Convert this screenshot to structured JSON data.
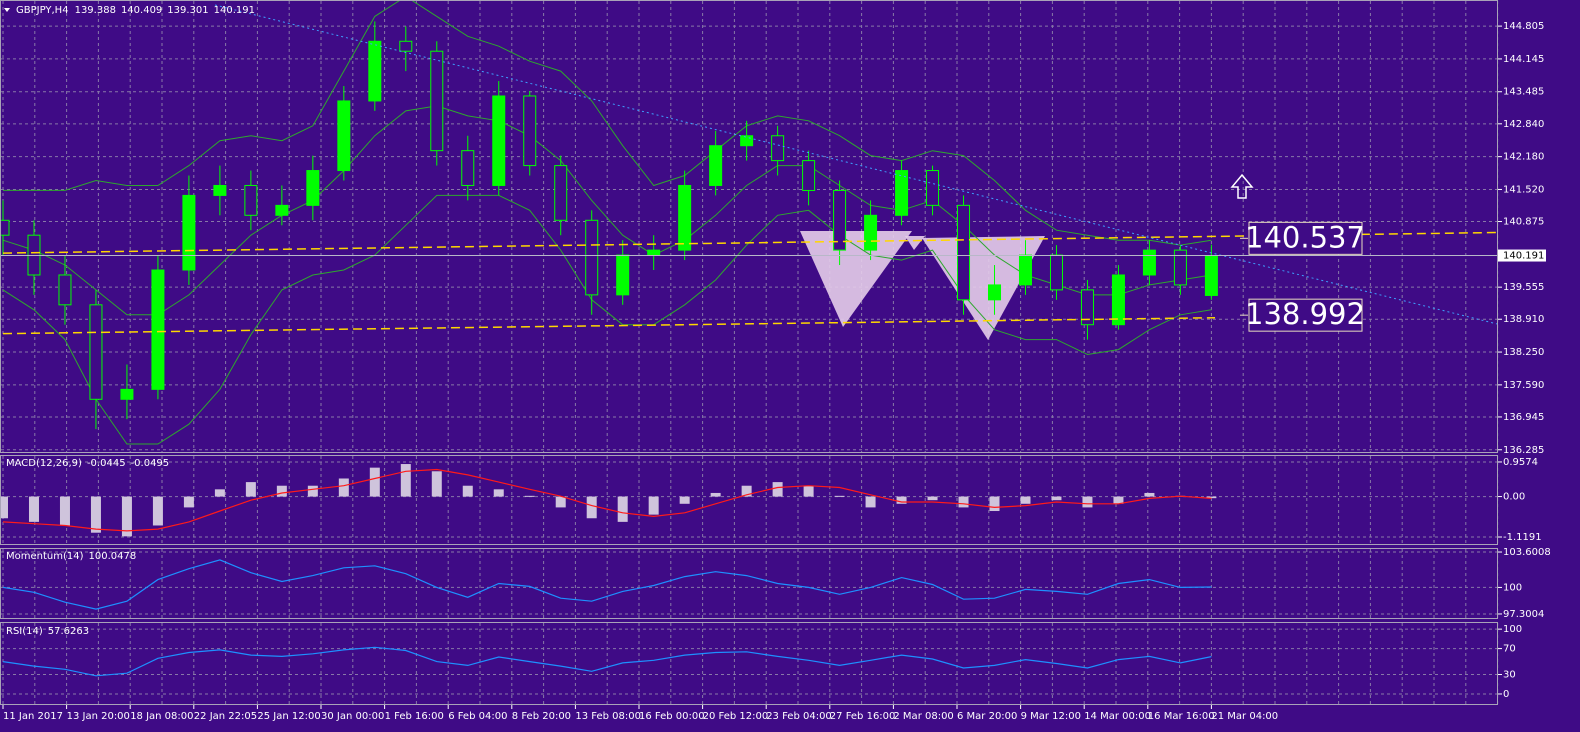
{
  "chart_data": [
    {
      "type": "candlestick",
      "symbol": "GBPJPY,H4",
      "color": "#00ff00",
      "open": [
        140.9,
        140.6,
        139.8,
        139.2,
        137.3,
        137.5,
        139.9,
        141.4,
        141.6,
        141.0,
        141.2,
        141.9,
        143.3,
        144.5,
        144.3,
        142.3,
        141.6,
        143.4,
        142.0,
        140.9,
        139.4,
        140.2,
        140.3,
        141.6,
        142.4,
        142.6,
        142.1,
        141.5,
        140.3,
        141.0,
        141.9,
        141.2,
        139.3,
        139.6,
        140.2,
        139.5,
        138.8,
        139.8,
        140.3,
        139.388
      ],
      "high": [
        141.3,
        140.9,
        140.2,
        139.5,
        138.0,
        140.2,
        141.8,
        142.0,
        141.9,
        141.6,
        142.2,
        143.6,
        144.9,
        144.8,
        144.5,
        142.6,
        143.7,
        143.5,
        142.2,
        141.1,
        140.5,
        140.6,
        141.9,
        142.7,
        142.9,
        142.8,
        142.3,
        141.7,
        141.3,
        142.1,
        142.0,
        141.4,
        140.0,
        140.5,
        140.4,
        139.7,
        140.0,
        140.5,
        140.4,
        140.409
      ],
      "low": [
        140.2,
        139.4,
        138.8,
        136.7,
        136.9,
        137.3,
        139.6,
        141.0,
        140.7,
        140.8,
        140.9,
        141.7,
        143.1,
        143.9,
        142.0,
        141.3,
        141.4,
        141.8,
        140.6,
        139.0,
        139.2,
        139.9,
        140.1,
        141.4,
        142.1,
        141.8,
        141.2,
        140.0,
        140.1,
        140.8,
        141.0,
        139.0,
        139.0,
        139.4,
        139.3,
        138.5,
        138.7,
        139.6,
        139.4,
        139.301
      ],
      "close": [
        140.6,
        139.8,
        139.2,
        137.3,
        137.5,
        139.9,
        141.4,
        141.6,
        141.0,
        141.2,
        141.9,
        143.3,
        144.5,
        144.3,
        142.3,
        141.6,
        143.4,
        142.0,
        140.9,
        139.4,
        140.2,
        140.3,
        141.6,
        142.4,
        142.6,
        142.1,
        141.5,
        140.3,
        141.0,
        141.9,
        141.2,
        139.3,
        139.6,
        140.2,
        139.5,
        138.8,
        139.8,
        140.3,
        139.6,
        140.191
      ],
      "bollinger": {
        "color": "#2ea82e",
        "upper": [
          141.5,
          141.5,
          141.5,
          141.7,
          141.6,
          141.6,
          142.0,
          142.5,
          142.6,
          142.5,
          142.8,
          143.9,
          145.0,
          145.4,
          145.0,
          144.6,
          144.4,
          144.1,
          143.9,
          143.3,
          142.4,
          141.6,
          141.8,
          142.3,
          142.8,
          143.0,
          142.9,
          142.6,
          142.2,
          142.1,
          142.3,
          142.2,
          141.7,
          141.1,
          140.7,
          140.6,
          140.5,
          140.5,
          140.4,
          140.5
        ],
        "middle": [
          140.5,
          140.3,
          140.0,
          139.5,
          139.0,
          139.0,
          139.4,
          140.0,
          140.6,
          141.0,
          141.3,
          141.9,
          142.6,
          143.1,
          143.2,
          143.0,
          142.9,
          142.6,
          142.1,
          141.3,
          140.6,
          140.2,
          140.5,
          141.0,
          141.6,
          142.0,
          142.0,
          141.6,
          141.2,
          141.1,
          141.3,
          140.8,
          140.2,
          139.8,
          139.6,
          139.4,
          139.4,
          139.6,
          139.7,
          139.8
        ],
        "lower": [
          139.5,
          139.1,
          138.5,
          137.3,
          136.4,
          136.4,
          136.8,
          137.5,
          138.6,
          139.5,
          139.8,
          139.9,
          140.2,
          140.8,
          141.4,
          141.4,
          141.4,
          141.1,
          140.3,
          139.3,
          138.8,
          138.8,
          139.2,
          139.7,
          140.4,
          141.0,
          141.1,
          140.6,
          140.2,
          140.1,
          140.3,
          139.4,
          138.7,
          138.5,
          138.5,
          138.2,
          138.3,
          138.7,
          139.0,
          139.1
        ]
      },
      "trendlines": [
        {
          "color": "#ffd700",
          "style": "dashed",
          "y": [
            140.24,
            140.66
          ]
        },
        {
          "color": "#ffd700",
          "style": "dashed",
          "y": [
            138.62,
            138.94
          ]
        },
        {
          "color": "#3fa0ff",
          "style": "dotted",
          "y": [
            145.23,
            138.7
          ]
        }
      ],
      "price_labels": [
        140.537,
        138.992
      ],
      "ylim": [
        136.24,
        145.33
      ],
      "yticks": [
        144.805,
        144.145,
        143.485,
        {
          "value": 142.84,
          "label": "142.840"
        },
        {
          "value": 142.18,
          "label": "142.180"
        },
        {
          "value": 141.52,
          "label": "141.520"
        },
        140.875,
        139.555,
        {
          "value": 138.91,
          "label": "138.910"
        },
        {
          "value": 138.25,
          "label": "138.250"
        },
        {
          "value": 137.59,
          "label": "137.590"
        },
        136.945,
        136.285
      ],
      "grid": true
    },
    {
      "type": "macd",
      "label": "MACD(12,26,9)",
      "hist_color": "#cfc4dc",
      "signal_color": "#ff1a1a",
      "histogram": [
        -0.6,
        -0.7,
        -0.8,
        -1.0,
        -1.1,
        -0.8,
        -0.3,
        0.2,
        0.4,
        0.3,
        0.3,
        0.5,
        0.8,
        0.9,
        0.7,
        0.3,
        0.2,
        0.02,
        -0.3,
        -0.6,
        -0.7,
        -0.5,
        -0.2,
        0.1,
        0.3,
        0.4,
        0.3,
        0.02,
        -0.3,
        -0.2,
        -0.1,
        -0.3,
        -0.4,
        -0.2,
        -0.1,
        -0.3,
        -0.2,
        0.1,
        0.02,
        -0.0445
      ],
      "signal": [
        -0.7,
        -0.75,
        -0.8,
        -0.9,
        -0.95,
        -0.9,
        -0.7,
        -0.4,
        -0.1,
        0.1,
        0.2,
        0.3,
        0.5,
        0.7,
        0.75,
        0.6,
        0.4,
        0.2,
        0.01,
        -0.25,
        -0.45,
        -0.55,
        -0.45,
        -0.2,
        0.05,
        0.25,
        0.3,
        0.25,
        0.05,
        -0.15,
        -0.15,
        -0.2,
        -0.3,
        -0.25,
        -0.15,
        -0.2,
        -0.2,
        -0.05,
        0.01,
        -0.0495
      ],
      "ylim": [
        -1.34,
        1.15
      ],
      "yticks": [
        -1.1191,
        {
          "value": 0,
          "label": "0.00"
        },
        0.9574
      ],
      "grid": true
    },
    {
      "type": "line",
      "label": "Momentum(14)",
      "color": "#1e90ff",
      "values": [
        100.0,
        99.5,
        98.5,
        97.8,
        98.6,
        100.8,
        101.9,
        102.8,
        101.5,
        100.6,
        101.2,
        102.0,
        102.2,
        101.4,
        100.0,
        99.0,
        100.4,
        100.1,
        98.9,
        98.6,
        99.6,
        100.2,
        101.1,
        101.6,
        101.2,
        100.4,
        100.0,
        99.3,
        100.0,
        101.0,
        100.3,
        98.8,
        98.9,
        99.8,
        99.6,
        99.3,
        100.4,
        100.8,
        100.0,
        100.0478
      ],
      "ylim": [
        96.89,
        104.01
      ],
      "yticks": [
        97.3004,
        100,
        103.6008
      ],
      "grid": true
    },
    {
      "type": "line",
      "label": "RSI(14)",
      "color": "#1e90ff",
      "values": [
        50,
        43,
        38,
        28,
        32,
        55,
        64,
        68,
        60,
        58,
        62,
        68,
        72,
        67,
        50,
        44,
        57,
        50,
        43,
        35,
        48,
        52,
        60,
        64,
        65,
        58,
        52,
        44,
        52,
        60,
        54,
        40,
        44,
        53,
        47,
        40,
        53,
        58,
        48,
        57.6263
      ],
      "ylim": [
        -17,
        111
      ],
      "yticks": [
        0,
        30,
        70,
        100
      ],
      "grid": true,
      "xtick_labels": [
        "11 Jan 2017",
        "13 Jan 20:00",
        "18 Jan 08:00",
        "22 Jan 22:05",
        "25 Jan 12:00",
        "30 Jan 00:00",
        "1 Feb 16:00",
        "6 Feb 04:00",
        "8 Feb 20:00",
        "13 Feb 08:00",
        "16 Feb 00:00",
        "20 Feb 12:00",
        "23 Feb 04:00",
        "27 Feb 16:00",
        "2 Mar 08:00",
        "6 Mar 20:00",
        "9 Mar 12:00",
        "14 Mar 00:00",
        "16 Mar 16:00",
        "21 Mar 04:00"
      ]
    }
  ]
}
